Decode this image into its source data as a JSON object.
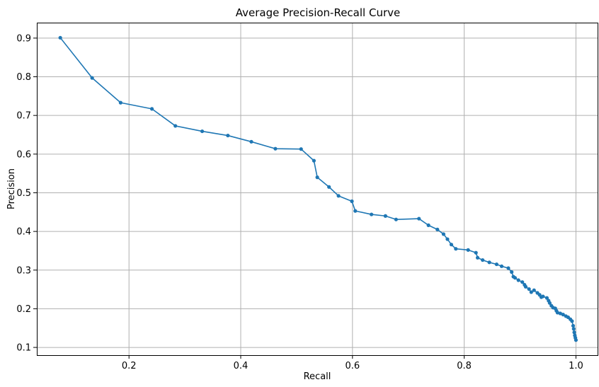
{
  "chart_data": {
    "type": "line",
    "title": "Average Precision-Recall Curve",
    "xlabel": "Recall",
    "ylabel": "Precision",
    "xlim": [
      0.035,
      1.04
    ],
    "ylim": [
      0.08,
      0.94
    ],
    "xticks": [
      0.2,
      0.4,
      0.6,
      0.8,
      1.0
    ],
    "xtick_labels": [
      "0.2",
      "0.4",
      "0.6",
      "0.8",
      "1.0"
    ],
    "yticks": [
      0.1,
      0.2,
      0.3,
      0.4,
      0.5,
      0.6,
      0.7,
      0.8,
      0.9
    ],
    "ytick_labels": [
      "0.1",
      "0.2",
      "0.3",
      "0.4",
      "0.5",
      "0.6",
      "0.7",
      "0.8",
      "0.9"
    ],
    "grid": true,
    "color": "#1f77b4",
    "marker": "circle",
    "series": [
      {
        "x": [
          0.077,
          0.134,
          0.185,
          0.241,
          0.283,
          0.331,
          0.377,
          0.419,
          0.462,
          0.508,
          0.531,
          0.537,
          0.558,
          0.575,
          0.599,
          0.605,
          0.634,
          0.659,
          0.678,
          0.719,
          0.736,
          0.752,
          0.763,
          0.77,
          0.777,
          0.785,
          0.807,
          0.821,
          0.824,
          0.833,
          0.845,
          0.858,
          0.867,
          0.879,
          0.885,
          0.888,
          0.891,
          0.897,
          0.904,
          0.908,
          0.91,
          0.916,
          0.92,
          0.925,
          0.931,
          0.935,
          0.938,
          0.941,
          0.948,
          0.951,
          0.953,
          0.956,
          0.959,
          0.963,
          0.965,
          0.967,
          0.972,
          0.977,
          0.982,
          0.986,
          0.99,
          0.993,
          0.995,
          0.996,
          0.997,
          0.998,
          0.999,
          1.0
        ],
        "y": [
          0.901,
          0.797,
          0.733,
          0.717,
          0.673,
          0.659,
          0.648,
          0.632,
          0.614,
          0.613,
          0.583,
          0.54,
          0.515,
          0.492,
          0.478,
          0.453,
          0.444,
          0.44,
          0.431,
          0.433,
          0.416,
          0.405,
          0.393,
          0.38,
          0.366,
          0.355,
          0.352,
          0.345,
          0.332,
          0.326,
          0.32,
          0.315,
          0.31,
          0.305,
          0.295,
          0.283,
          0.28,
          0.274,
          0.269,
          0.262,
          0.257,
          0.251,
          0.243,
          0.248,
          0.241,
          0.236,
          0.23,
          0.232,
          0.228,
          0.221,
          0.215,
          0.208,
          0.203,
          0.201,
          0.195,
          0.19,
          0.188,
          0.185,
          0.181,
          0.178,
          0.173,
          0.168,
          0.156,
          0.148,
          0.139,
          0.131,
          0.125,
          0.119
        ]
      }
    ]
  }
}
